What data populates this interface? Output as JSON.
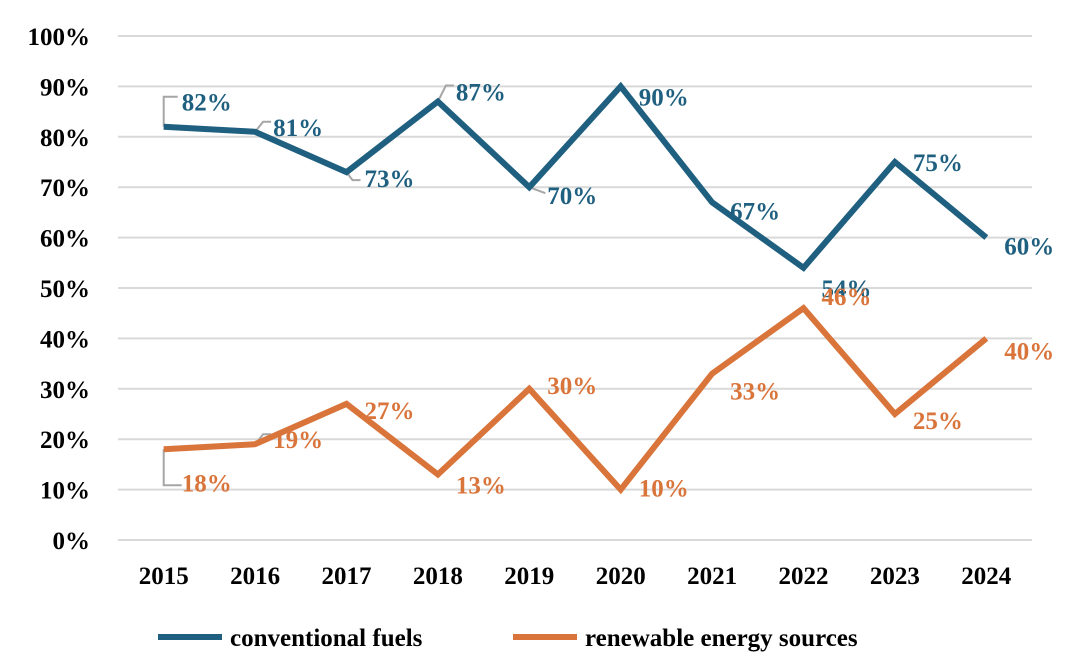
{
  "chart_data": {
    "type": "line",
    "title": "",
    "xlabel": "",
    "ylabel": "",
    "ylim": [
      0,
      100
    ],
    "y_ticks": [
      "0%",
      "10%",
      "20%",
      "30%",
      "40%",
      "50%",
      "60%",
      "70%",
      "80%",
      "90%",
      "100%"
    ],
    "categories": [
      "2015",
      "2016",
      "2017",
      "2018",
      "2019",
      "2020",
      "2021",
      "2022",
      "2023",
      "2024"
    ],
    "grid": true,
    "legend_position": "bottom",
    "series": [
      {
        "name": "conventional fuels",
        "color": "#1f5f7f",
        "values": [
          82,
          81,
          73,
          87,
          70,
          90,
          67,
          54,
          75,
          60
        ],
        "labels": [
          "82%",
          "81%",
          "73%",
          "87%",
          "70%",
          "90%",
          "67%",
          "54%",
          "75%",
          "60%"
        ]
      },
      {
        "name": "renewable energy sources",
        "color": "#d9743a",
        "values": [
          18,
          19,
          27,
          13,
          30,
          10,
          33,
          46,
          25,
          40
        ],
        "labels": [
          "18%",
          "19%",
          "27%",
          "13%",
          "30%",
          "10%",
          "33%",
          "46%",
          "25%",
          "40%"
        ]
      }
    ]
  }
}
